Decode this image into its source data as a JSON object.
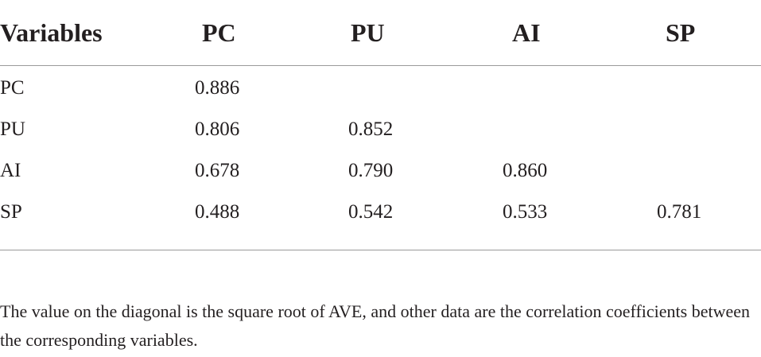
{
  "table": {
    "header": {
      "variables": "Variables",
      "cols": [
        "PC",
        "PU",
        "AI",
        "SP"
      ]
    },
    "rows": [
      {
        "label": "PC",
        "cells": [
          "0.886",
          "",
          "",
          ""
        ]
      },
      {
        "label": "PU",
        "cells": [
          "0.806",
          "0.852",
          "",
          ""
        ]
      },
      {
        "label": "AI",
        "cells": [
          "0.678",
          "0.790",
          "0.860",
          ""
        ]
      },
      {
        "label": "SP",
        "cells": [
          "0.488",
          "0.542",
          "0.533",
          "0.781"
        ]
      }
    ]
  },
  "footnote": "The value on the diagonal is the square root of AVE, and other data are the correlation coefficients between the corresponding variables."
}
